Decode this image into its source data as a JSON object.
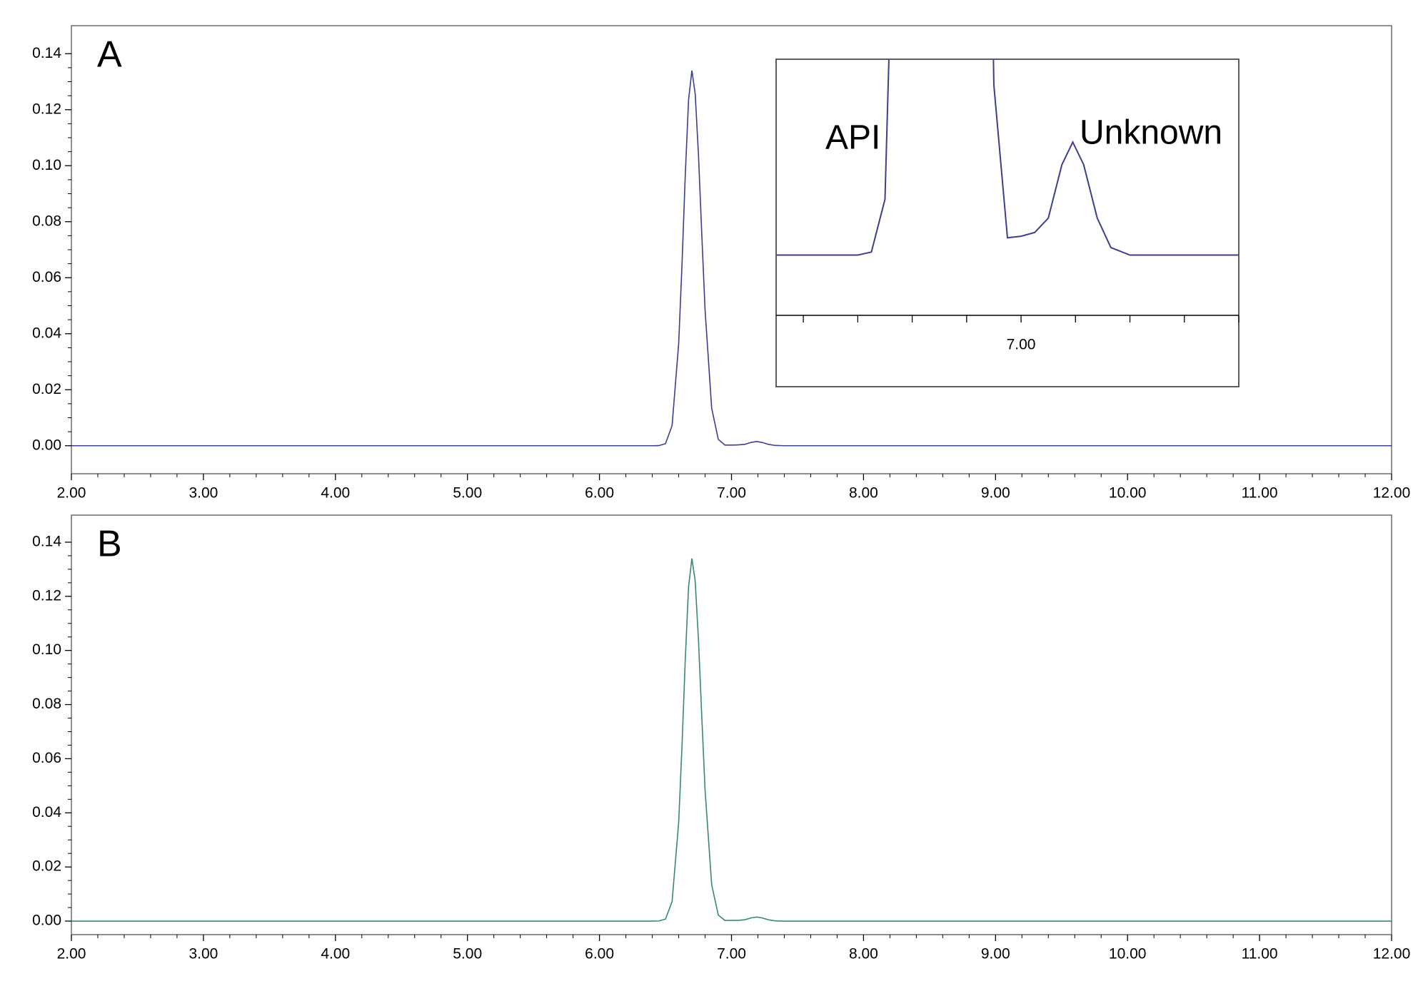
{
  "chart_data": [
    {
      "type": "line",
      "label": "A",
      "x": [
        2.0,
        6.3,
        6.4,
        6.45,
        6.5,
        6.55,
        6.6,
        6.625,
        6.65,
        6.675,
        6.7,
        6.725,
        6.75,
        6.775,
        6.8,
        6.85,
        6.9,
        6.95,
        7.0,
        7.05,
        7.1,
        7.15,
        7.19,
        7.23,
        7.28,
        7.33,
        7.4,
        7.5,
        12.0
      ],
      "series": [
        {
          "color": "#3b3f8f",
          "values": [
            0,
            0,
            0,
            4e-05,
            0.00074,
            0.0072,
            0.0365,
            0.0645,
            0.0968,
            0.1236,
            0.134,
            0.1257,
            0.1038,
            0.0755,
            0.0483,
            0.0134,
            0.00226,
            0.00023,
            0.00025,
            0.0003,
            0.00049,
            0.0012,
            0.0015,
            0.0012,
            0.00049,
            0.0001,
            0,
            0,
            0
          ]
        }
      ],
      "xlim": [
        2,
        12
      ],
      "ylim": [
        -0.01,
        0.15
      ],
      "xticks": [
        {
          "value": 2,
          "label": "2.00"
        },
        {
          "value": 3,
          "label": "3.00"
        },
        {
          "value": 4,
          "label": "4.00"
        },
        {
          "value": 5,
          "label": "5.00"
        },
        {
          "value": 6,
          "label": "6.00"
        },
        {
          "value": 7,
          "label": "7.00"
        },
        {
          "value": 8,
          "label": "8.00"
        },
        {
          "value": 9,
          "label": "9.00"
        },
        {
          "value": 10,
          "label": "10.00"
        },
        {
          "value": 11,
          "label": "11.00"
        },
        {
          "value": 12,
          "label": "12.00"
        }
      ],
      "yticks": [
        {
          "value": 0,
          "label": "0.00"
        },
        {
          "value": 0.02,
          "label": "0.02"
        },
        {
          "value": 0.04,
          "label": "0.04"
        },
        {
          "value": 0.06,
          "label": "0.06"
        },
        {
          "value": 0.08,
          "label": "0.08"
        },
        {
          "value": 0.1,
          "label": "0.10"
        },
        {
          "value": 0.12,
          "label": "0.12"
        },
        {
          "value": 0.14,
          "label": "0.14"
        }
      ],
      "inset": {
        "xlim": [
          6.1,
          7.8
        ],
        "ylim": [
          -0.0008,
          0.0026
        ],
        "xticks": [
          {
            "value": 7,
            "label": "7.00"
          }
        ],
        "xminor": [
          6.2,
          6.4,
          6.6,
          6.8,
          7.2,
          7.4,
          7.6,
          7.8
        ],
        "annotations": [
          "API",
          "Unknown"
        ]
      }
    },
    {
      "type": "line",
      "label": "B",
      "x": [
        2.0,
        6.3,
        6.4,
        6.45,
        6.5,
        6.55,
        6.6,
        6.625,
        6.65,
        6.675,
        6.7,
        6.725,
        6.75,
        6.775,
        6.8,
        6.85,
        6.9,
        6.95,
        7.0,
        7.05,
        7.1,
        7.15,
        7.19,
        7.23,
        7.28,
        7.33,
        7.4,
        7.5,
        12.0
      ],
      "series": [
        {
          "color": "#3a8a6a",
          "values": [
            0,
            0,
            0,
            4e-05,
            0.00074,
            0.0072,
            0.0365,
            0.0645,
            0.0968,
            0.1236,
            0.134,
            0.1257,
            0.1038,
            0.0755,
            0.0483,
            0.0134,
            0.00226,
            0.00023,
            0.00025,
            0.0003,
            0.00049,
            0.0012,
            0.0015,
            0.0012,
            0.00049,
            0.0001,
            0,
            0,
            0
          ]
        }
      ],
      "xlim": [
        2,
        12
      ],
      "ylim": [
        -0.005,
        0.15
      ],
      "xticks": [
        {
          "value": 2,
          "label": "2.00"
        },
        {
          "value": 3,
          "label": "3.00"
        },
        {
          "value": 4,
          "label": "4.00"
        },
        {
          "value": 5,
          "label": "5.00"
        },
        {
          "value": 6,
          "label": "6.00"
        },
        {
          "value": 7,
          "label": "7.00"
        },
        {
          "value": 8,
          "label": "8.00"
        },
        {
          "value": 9,
          "label": "9.00"
        },
        {
          "value": 10,
          "label": "10.00"
        },
        {
          "value": 11,
          "label": "11.00"
        },
        {
          "value": 12,
          "label": "12.00"
        }
      ],
      "yticks": [
        {
          "value": 0,
          "label": "0.00"
        },
        {
          "value": 0.02,
          "label": "0.02"
        },
        {
          "value": 0.04,
          "label": "0.04"
        },
        {
          "value": 0.06,
          "label": "0.06"
        },
        {
          "value": 0.08,
          "label": "0.08"
        },
        {
          "value": 0.1,
          "label": "0.10"
        },
        {
          "value": 0.12,
          "label": "0.12"
        },
        {
          "value": 0.14,
          "label": "0.14"
        }
      ]
    }
  ]
}
